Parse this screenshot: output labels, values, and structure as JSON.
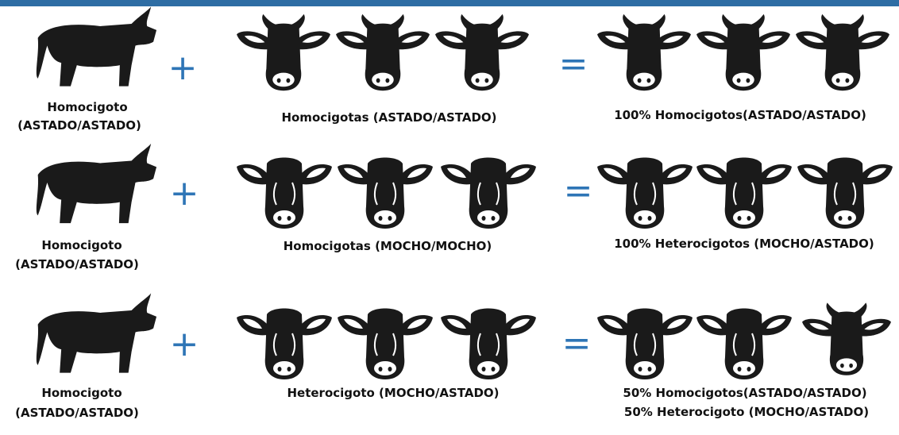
{
  "rows": [
    {
      "parent_label": [
        "Homocigoto",
        "(ASTADO/ASTADO)"
      ],
      "plus": "+",
      "cows_label": "Homocigotas (ASTADO/ASTADO)",
      "equals": "=",
      "result_label": [
        "100% Homocigotos(ASTADO/ASTADO)"
      ]
    },
    {
      "parent_label": [
        "Homocigoto",
        "(ASTADO/ASTADO)"
      ],
      "plus": "+",
      "cows_label": "Homocigotas (MOCHO/MOCHO)",
      "equals": "=",
      "result_label": [
        "100% Heterocigotos (MOCHO/ASTADO)"
      ]
    },
    {
      "parent_label": [
        "Homocigoto",
        "(ASTADO/ASTADO)"
      ],
      "plus": "+",
      "cows_label": "Heterocigoto (MOCHO/ASTADO)",
      "equals": "=",
      "result_label": [
        "50% Homocigotos(ASTADO/ASTADO)",
        "50% Heterocigoto (MOCHO/ASTADO)"
      ]
    }
  ]
}
